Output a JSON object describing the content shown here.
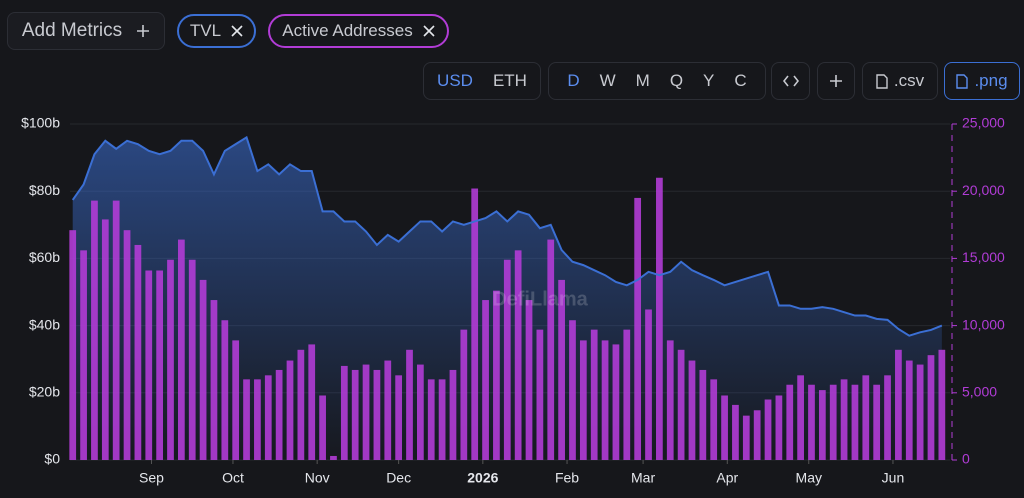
{
  "ui": {
    "add_metrics": "Add Metrics",
    "currencies": [
      "USD",
      "ETH"
    ],
    "periods": [
      "D",
      "W",
      "M",
      "Q",
      "Y",
      "C"
    ],
    "csv": ".csv",
    "png": ".png",
    "watermark": "DefiLlama"
  },
  "chart_data": {
    "type": "bar-line",
    "x": [
      2,
      6,
      10,
      14,
      18,
      22,
      26,
      30,
      34,
      38,
      42,
      46,
      50,
      54,
      58,
      62,
      66,
      70,
      74,
      78,
      82,
      86,
      90,
      94,
      98,
      102,
      106,
      110,
      114,
      118,
      122,
      126,
      130,
      134,
      138,
      142,
      146,
      150,
      154,
      158,
      162,
      166,
      170,
      174,
      178,
      182,
      186,
      190,
      194,
      198,
      202,
      206,
      210,
      214,
      218,
      222,
      226,
      230,
      234,
      238,
      242,
      246,
      250,
      254,
      258,
      262,
      266,
      270,
      274,
      278,
      282,
      286,
      290,
      294,
      298,
      302,
      306,
      310,
      314,
      318,
      322
    ],
    "xlim": [
      1,
      325
    ],
    "xticks": [
      {
        "value": 31,
        "label": "Sep"
      },
      {
        "value": 61,
        "label": "Oct"
      },
      {
        "value": 92,
        "label": "Nov"
      },
      {
        "value": 122,
        "label": "Dec"
      },
      {
        "value": 153,
        "label": "2026"
      },
      {
        "value": 184,
        "label": "Feb"
      },
      {
        "value": 212,
        "label": "Mar"
      },
      {
        "value": 243,
        "label": "Apr"
      },
      {
        "value": 273,
        "label": "May"
      },
      {
        "value": 304,
        "label": "Jun"
      }
    ],
    "ylim": [
      0,
      100
    ],
    "yticks": [
      {
        "value": 0,
        "label": "$0"
      },
      {
        "value": 20,
        "label": "$20b"
      },
      {
        "value": 40,
        "label": "$40b"
      },
      {
        "value": 60,
        "label": "$60b"
      },
      {
        "value": 80,
        "label": "$80b"
      },
      {
        "value": 100,
        "label": "$100b"
      }
    ],
    "y2lim": [
      0,
      25000
    ],
    "y2ticks": [
      0,
      {
        "value": 5000,
        "label": "5,000"
      },
      {
        "value": 10000,
        "label": "10,000"
      },
      {
        "value": 15000,
        "label": "15,000"
      },
      {
        "value": 20000,
        "label": "20,000"
      },
      {
        "value": 25000,
        "label": "25,000"
      }
    ],
    "series": [
      {
        "name": "TVL",
        "color": "#3b6fd4",
        "type": "area",
        "values": [
          77.4,
          82,
          91,
          95,
          92.6,
          95,
          94,
          92,
          91,
          92,
          95,
          95,
          92,
          85,
          92,
          94,
          96,
          86,
          88,
          85,
          88,
          86,
          86,
          74,
          74,
          71,
          71,
          68,
          64,
          67,
          65,
          68,
          71,
          71,
          68,
          71,
          70,
          71,
          72,
          74,
          71,
          74,
          73,
          69,
          70,
          62.5,
          59,
          58,
          56.5,
          55,
          53,
          52,
          53.6,
          56,
          55,
          56,
          59,
          56.5,
          55,
          53.6,
          52,
          53,
          54,
          55,
          56,
          46,
          46,
          45,
          45,
          45.5,
          45,
          44,
          43,
          43,
          42,
          41.7,
          39,
          37,
          38,
          38.7,
          40
        ]
      },
      {
        "name": "Active Addresses",
        "color": "#b13cd6",
        "type": "bar",
        "axis": "y2",
        "values": [
          17100,
          15600,
          19300,
          17900,
          19300,
          17100,
          16000,
          14100,
          14100,
          14900,
          16400,
          14900,
          13400,
          11900,
          10400,
          8900,
          6000,
          6000,
          6300,
          6700,
          7400,
          8200,
          8600,
          4800,
          300,
          7000,
          6700,
          7100,
          6700,
          7400,
          6300,
          8200,
          7100,
          6000,
          6000,
          6700,
          9700,
          20200,
          11900,
          12600,
          14900,
          15600,
          11900,
          9700,
          16400,
          13400,
          10400,
          8900,
          9700,
          8900,
          8600,
          9700,
          19500,
          11200,
          21000,
          8900,
          8200,
          7400,
          6700,
          6000,
          4800,
          4100,
          3300,
          3700,
          4500,
          4800,
          5600,
          6300,
          5600,
          5200,
          5600,
          6000,
          5600,
          6300,
          5600,
          6300,
          8200,
          7400,
          7100,
          7800,
          8200
        ]
      }
    ]
  }
}
